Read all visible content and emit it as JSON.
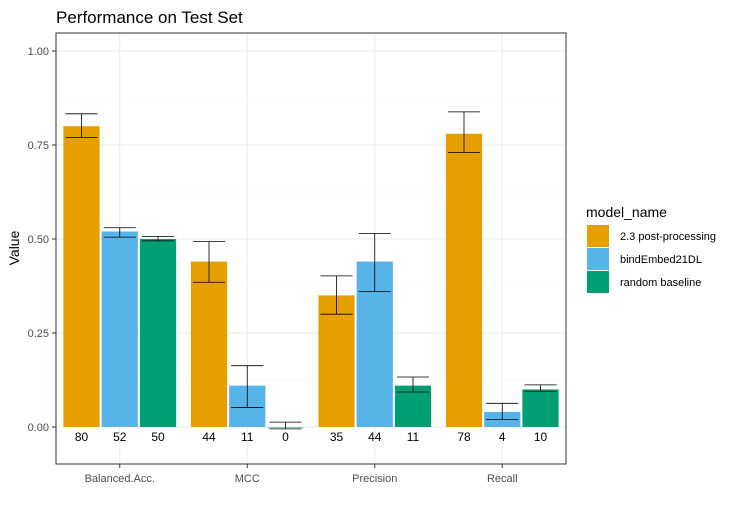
{
  "chart_data": {
    "type": "bar",
    "title": "Performance on Test Set",
    "xlabel": "",
    "ylabel": "Value",
    "ylim": [
      -0.1,
      1.05
    ],
    "yticks": [
      "0.00",
      "0.25",
      "0.50",
      "0.75",
      "1.00"
    ],
    "categories": [
      "Balanced.Acc.",
      "MCC",
      "Precision",
      "Recall"
    ],
    "grid": true,
    "legend": {
      "title": "model_name",
      "position": "right"
    },
    "series": [
      {
        "name": "2.3 post-processing",
        "color": "#E69F00",
        "values": [
          0.8,
          0.44,
          0.35,
          0.78
        ],
        "err_low": [
          0.77,
          0.385,
          0.3,
          0.73
        ],
        "err_high": [
          0.833,
          0.493,
          0.402,
          0.838
        ],
        "labels": [
          "80",
          "44",
          "35",
          "78"
        ]
      },
      {
        "name": "bindEmbed21DL",
        "color": "#56B4E9",
        "values": [
          0.52,
          0.11,
          0.44,
          0.04
        ],
        "err_low": [
          0.505,
          0.052,
          0.36,
          0.02
        ],
        "err_high": [
          0.53,
          0.163,
          0.515,
          0.063
        ],
        "labels": [
          "52",
          "11",
          "44",
          "4"
        ]
      },
      {
        "name": "random baseline",
        "color": "#009E73",
        "values": [
          0.5,
          0.0,
          0.11,
          0.1
        ],
        "err_low": [
          0.495,
          -0.005,
          0.093,
          0.095
        ],
        "err_high": [
          0.507,
          0.013,
          0.133,
          0.112
        ],
        "labels": [
          "50",
          "0",
          "11",
          "10"
        ]
      }
    ]
  }
}
